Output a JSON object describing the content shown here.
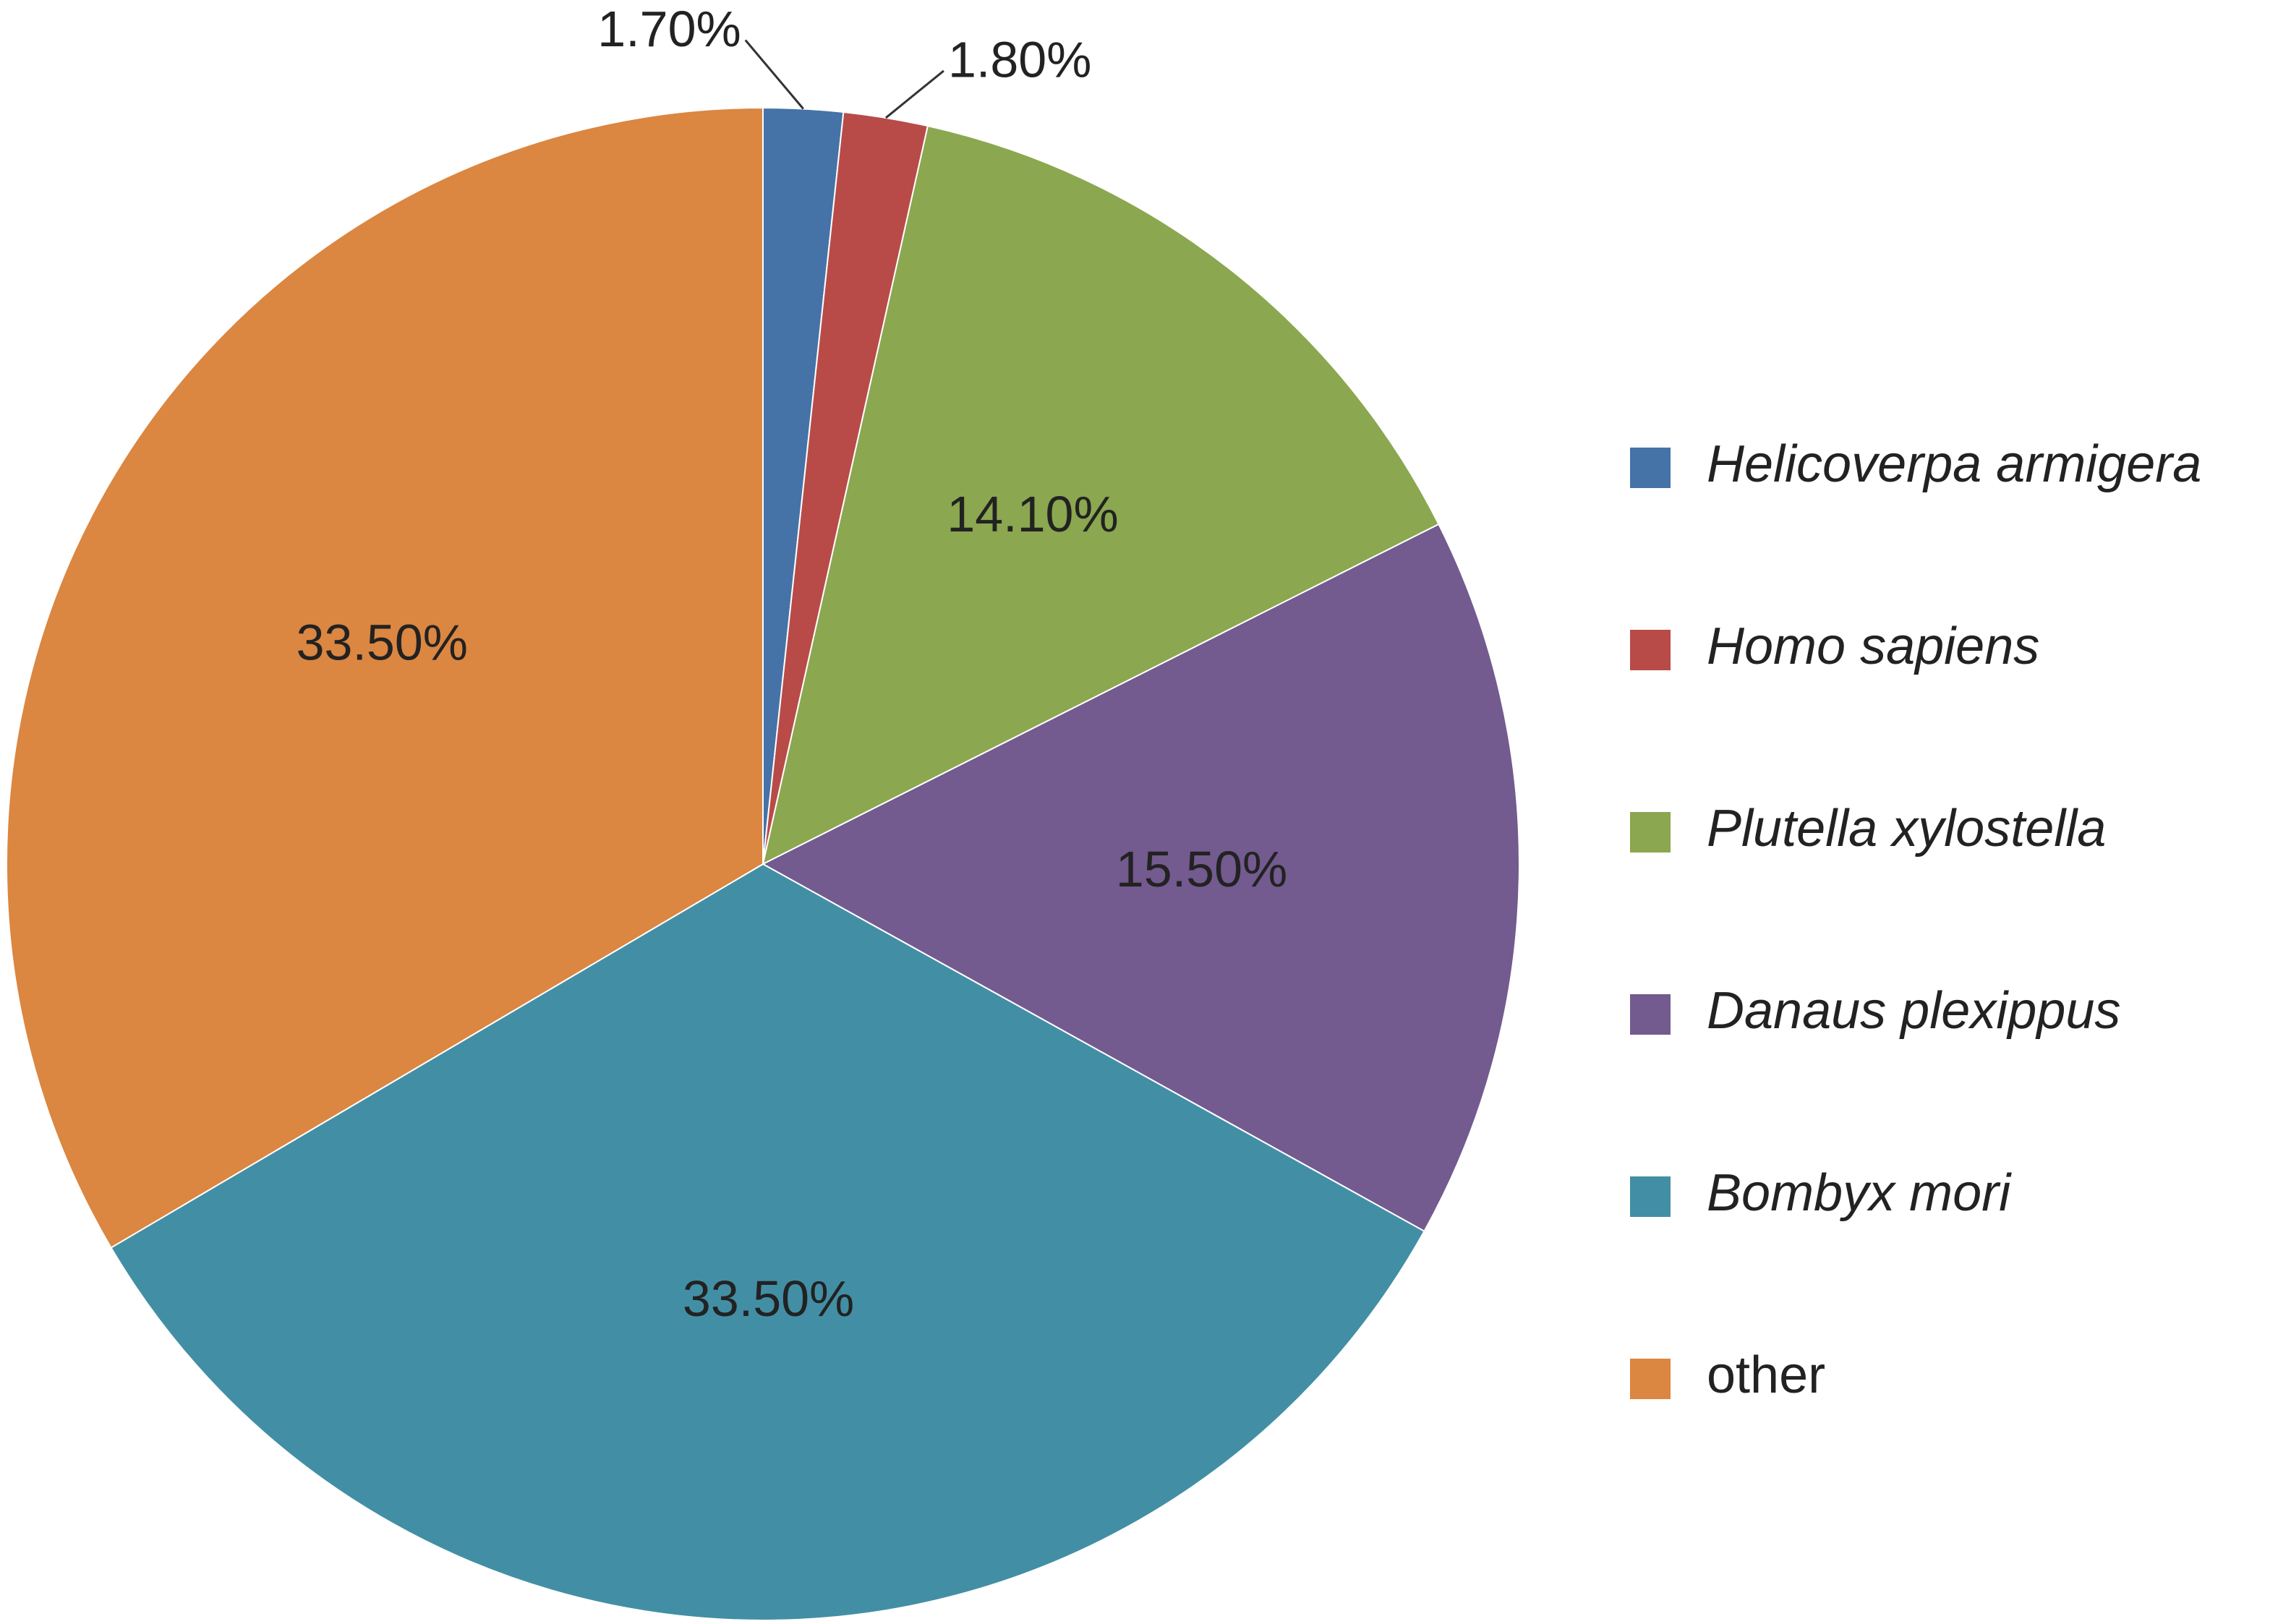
{
  "chart_data": {
    "type": "pie",
    "categories": [
      "Helicoverpa armigera",
      "Homo sapiens",
      "Plutella xylostella",
      "Danaus plexippus",
      "Bombyx mori",
      "other"
    ],
    "values": [
      1.7,
      1.8,
      14.1,
      15.5,
      33.5,
      33.5
    ],
    "value_labels": [
      "1.70%",
      "1.80%",
      "14.10%",
      "15.50%",
      "33.50%",
      "33.50%"
    ],
    "colors": [
      "#4573a7",
      "#b84b48",
      "#8ba74f",
      "#735a8f",
      "#428fa5",
      "#db8641"
    ],
    "legend": "right"
  }
}
